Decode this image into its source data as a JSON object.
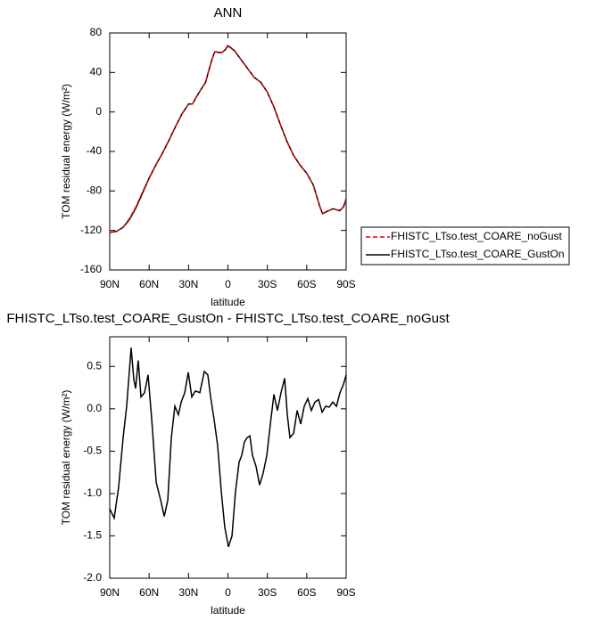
{
  "chart_data": [
    {
      "type": "line",
      "title": "ANN",
      "xlabel": "latitude",
      "ylabel": "TOM residual energy (W/m²)",
      "x": [
        90,
        85,
        80,
        75,
        70,
        65,
        60,
        55,
        50,
        45,
        40,
        35,
        30,
        27,
        25,
        20,
        17,
        15,
        12,
        10,
        5,
        2,
        0,
        -5,
        -10,
        -15,
        -20,
        -25,
        -30,
        -35,
        -40,
        -45,
        -50,
        -55,
        -60,
        -65,
        -70,
        -72,
        -75,
        -80,
        -85,
        -88,
        -90
      ],
      "series": [
        {
          "name": "FHISTC_LTso.test_COARE_GustOn",
          "color": "#000000",
          "linestyle": "solid",
          "values": [
            -122,
            -121,
            -117,
            -109,
            -97,
            -82,
            -67,
            -54,
            -42,
            -29,
            -15,
            -2,
            8,
            8,
            13,
            24,
            30,
            40,
            54,
            61,
            60,
            63,
            67,
            62,
            53,
            44,
            35,
            30,
            20,
            5,
            -13,
            -30,
            -44,
            -54,
            -62,
            -74,
            -96,
            -103,
            -101,
            -98,
            -100,
            -96,
            -88
          ]
        },
        {
          "name": "FHISTC_LTso.test_COARE_noGust",
          "color": "#e00000",
          "linestyle": "dashed",
          "values": [
            -122,
            -121,
            -117,
            -108,
            -96,
            -81,
            -67,
            -54,
            -42,
            -29,
            -15,
            -2,
            8,
            8,
            13,
            24,
            30,
            40,
            54,
            61,
            60,
            63,
            68,
            62,
            53,
            44,
            35,
            30,
            20,
            5,
            -13,
            -30,
            -44,
            -54,
            -62,
            -74,
            -96,
            -103,
            -101,
            -98,
            -100,
            -96,
            -88
          ]
        }
      ],
      "legend_order": [
        1,
        0
      ],
      "legend": "outside-right",
      "xlim": [
        90,
        -90
      ],
      "xticks": [
        {
          "value": 90,
          "label": "90N"
        },
        {
          "value": 60,
          "label": "60N"
        },
        {
          "value": 30,
          "label": "30N"
        },
        0,
        {
          "value": -30,
          "label": "30S"
        },
        {
          "value": -60,
          "label": "60S"
        },
        {
          "value": -90,
          "label": "90S"
        }
      ],
      "ylim": [
        -160,
        80
      ],
      "yticks": [
        80,
        40,
        0,
        -40,
        -80,
        -120,
        -160
      ]
    },
    {
      "type": "line",
      "title": "FHISTC_LTso.test_COARE_GustOn - FHISTC_LTso.test_COARE_noGust",
      "xlabel": "latitude",
      "ylabel": "TOM residual energy (W/m²)",
      "x": [
        90,
        86.6,
        83.2,
        79.8,
        77.1,
        73.7,
        71.7,
        70.3,
        68.3,
        66.2,
        63.5,
        60.8,
        58.0,
        54.6,
        51.2,
        48.5,
        45.8,
        43.1,
        40.4,
        37.7,
        35.6,
        32.9,
        30.2,
        27.5,
        24.8,
        21.4,
        18.0,
        15.3,
        13.2,
        10.5,
        7.8,
        5.1,
        2.4,
        -0.4,
        -3.1,
        -5.8,
        -8.5,
        -10.5,
        -12.6,
        -14.6,
        -16.7,
        -18.7,
        -21.4,
        -24.1,
        -26.8,
        -29.6,
        -32.3,
        -35.0,
        -37.7,
        -40.4,
        -43.2,
        -45.2,
        -47.2,
        -50.0,
        -52.7,
        -55.4,
        -58.1,
        -60.8,
        -63.5,
        -66.3,
        -69.0,
        -71.7,
        -74.4,
        -77.2,
        -79.9,
        -82.6,
        -85.3,
        -88.0,
        -90
      ],
      "series": [
        {
          "name": "FHISTC_LTso.test_COARE_GustOn - FHISTC_LTso.test_COARE_noGust",
          "color": "#000000",
          "linestyle": "solid",
          "values": [
            -1.18,
            -1.29,
            -0.92,
            -0.34,
            0.03,
            0.72,
            0.35,
            0.24,
            0.57,
            0.14,
            0.19,
            0.4,
            -0.13,
            -0.87,
            -1.08,
            -1.27,
            -1.08,
            -0.34,
            0.03,
            -0.07,
            0.08,
            0.19,
            0.43,
            0.14,
            0.21,
            0.19,
            0.44,
            0.4,
            0.14,
            -0.13,
            -0.44,
            -0.97,
            -1.4,
            -1.63,
            -1.5,
            -0.97,
            -0.63,
            -0.55,
            -0.39,
            -0.34,
            -0.32,
            -0.55,
            -0.68,
            -0.9,
            -0.76,
            -0.55,
            -0.18,
            0.17,
            -0.02,
            0.19,
            0.36,
            -0.07,
            -0.34,
            -0.29,
            -0.02,
            -0.18,
            0.03,
            0.12,
            -0.02,
            0.08,
            0.11,
            -0.04,
            0.03,
            0.02,
            0.08,
            0.03,
            0.19,
            0.29,
            0.4
          ]
        }
      ],
      "xlim": [
        90,
        -90
      ],
      "xticks": [
        {
          "value": 90,
          "label": "90N"
        },
        {
          "value": 60,
          "label": "60N"
        },
        {
          "value": 30,
          "label": "30N"
        },
        0,
        {
          "value": -30,
          "label": "30S"
        },
        {
          "value": -60,
          "label": "60S"
        },
        {
          "value": -90,
          "label": "90S"
        }
      ],
      "ylim": [
        -2.0,
        0.85
      ],
      "yticks": [
        0.5,
        {
          "value": 0,
          "label": "0.0"
        },
        -0.5,
        {
          "value": -1,
          "label": "-1.0"
        },
        -1.5,
        {
          "value": -2,
          "label": "-2.0"
        }
      ]
    }
  ]
}
